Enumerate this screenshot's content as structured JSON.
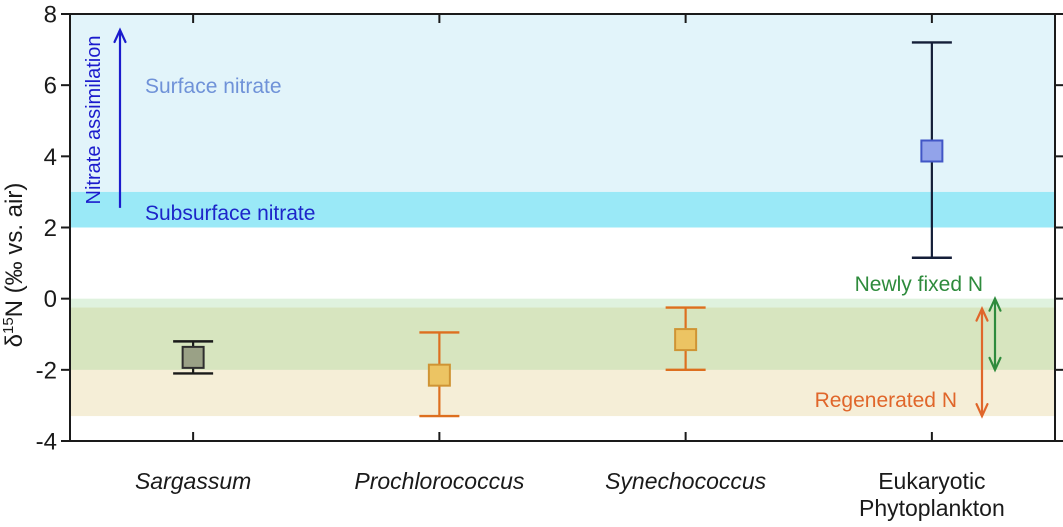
{
  "figure": {
    "background": "#ffffff",
    "frame_color": "#1a1a1a"
  },
  "chart_data": {
    "type": "scatter",
    "title": "",
    "xlabel": "",
    "ylabel": "δ15N (‰ vs. air)",
    "ylabel_parts": {
      "prefix": "δ",
      "superscript": "15",
      "suffix": "N (‰ vs. air)"
    },
    "ylim": [
      -4,
      8
    ],
    "yticks": [
      8,
      6,
      4,
      2,
      0,
      -2,
      -4
    ],
    "ytick_labels": [
      "8",
      "6",
      "4",
      "2",
      "0",
      "-2",
      "-4"
    ],
    "grid": false,
    "legend": null,
    "categories": [
      {
        "label": "Sargassum",
        "italic": true,
        "lines": [
          "Sargassum"
        ]
      },
      {
        "label": "Prochlorococcus",
        "italic": true,
        "lines": [
          "Prochlorococcus"
        ]
      },
      {
        "label": "Synechococcus",
        "italic": true,
        "lines": [
          "Synechococcus"
        ]
      },
      {
        "label": "Eukaryotic Phytoplankton",
        "italic": false,
        "lines": [
          "Eukaryotic",
          "Phytoplankton"
        ]
      }
    ],
    "points": [
      {
        "category": "Sargassum",
        "value": -1.65,
        "err_low": -2.1,
        "err_high": -1.2,
        "marker": "square",
        "fill": "#9aa186",
        "edge": "#2e2e2e",
        "error_color": "#1a1a1a"
      },
      {
        "category": "Prochlorococcus",
        "value": -2.15,
        "err_low": -3.3,
        "err_high": -0.95,
        "marker": "square",
        "fill": "#ecc463",
        "edge": "#cf9434",
        "error_color": "#dd6f1f"
      },
      {
        "category": "Synechococcus",
        "value": -1.15,
        "err_low": -2.0,
        "err_high": -0.25,
        "marker": "square",
        "fill": "#ecc463",
        "edge": "#cf9434",
        "error_color": "#dd6f1f"
      },
      {
        "category": "Eukaryotic Phytoplankton",
        "value": 4.15,
        "err_low": 1.15,
        "err_high": 7.2,
        "marker": "square",
        "fill": "#92a3ea",
        "edge": "#4156c6",
        "error_color": "#141e38"
      }
    ],
    "bands": [
      {
        "name": "surface-nitrate",
        "label": "Surface nitrate",
        "from": 3,
        "to": 8,
        "fill": "#e2f4fa",
        "label_color": "#6f92d8"
      },
      {
        "name": "subsurface-nitrate",
        "label": "Subsurface nitrate",
        "from": 2,
        "to": 3,
        "fill": "#9ae9f7",
        "label_color": "#1c25c9"
      },
      {
        "name": "regenerated-n",
        "label": "Regenerated N",
        "from": -3.3,
        "to": -0.25,
        "fill": "#f5eed7",
        "label_color": "#e0662a"
      },
      {
        "name": "newly-fixed-n",
        "label": "Newly fixed N",
        "from": -2,
        "to": 0,
        "fill": "rgba(120,200,115,0.24)",
        "label_color": "#2e8b3c"
      }
    ],
    "annotations": [
      {
        "name": "nitrate-assimilation",
        "text": "Nitrate assimilation",
        "type": "arrow-up",
        "color": "#1b1bcd",
        "from": 2.55,
        "to": 7.55
      },
      {
        "name": "newly-fixed-range",
        "text": "",
        "type": "double-arrow",
        "color": "#2e8b3c",
        "from": -2,
        "to": 0
      },
      {
        "name": "regenerated-range",
        "text": "",
        "type": "double-arrow",
        "color": "#e0662a",
        "from": -3.3,
        "to": -0.28
      }
    ]
  }
}
